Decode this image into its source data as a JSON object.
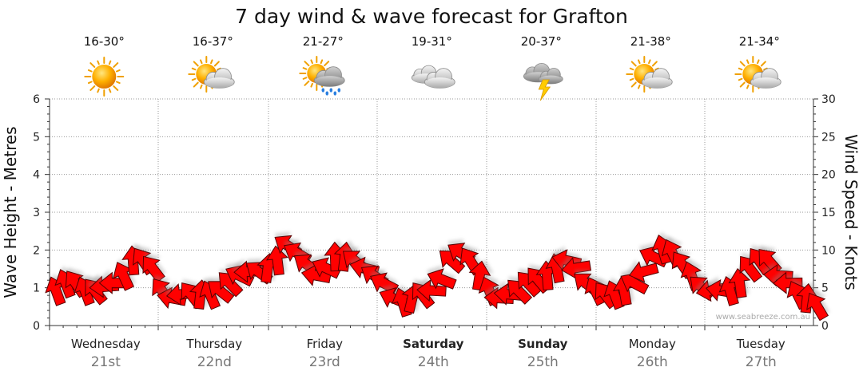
{
  "chart_data": {
    "type": "line",
    "title": "7 day wind & wave forecast for Grafton",
    "ylabel_left": "Wave Height - Metres",
    "ylabel_right": "Wind Speed - Knots",
    "ylim_left": [
      0,
      6
    ],
    "ylim_right": [
      0,
      30
    ],
    "yticks_left": [
      "0",
      "1",
      "2",
      "3",
      "4",
      "5",
      "6"
    ],
    "yticks_right": [
      "0",
      "5",
      "10",
      "15",
      "20",
      "25",
      "30"
    ],
    "grid": true,
    "days": [
      {
        "name": "Wednesday",
        "date": "21st",
        "temp": "16-30°",
        "icon": "sunny-icon",
        "bold": false
      },
      {
        "name": "Thursday",
        "date": "22nd",
        "temp": "16-37°",
        "icon": "partly-cloudy-icon",
        "bold": false
      },
      {
        "name": "Friday",
        "date": "23rd",
        "temp": "21-27°",
        "icon": "sun-cloud-rain-icon",
        "bold": false
      },
      {
        "name": "Saturday",
        "date": "24th",
        "temp": "19-31°",
        "icon": "cloudy-icon",
        "bold": true
      },
      {
        "name": "Sunday",
        "date": "25th",
        "temp": "20-37°",
        "icon": "thunderstorm-icon",
        "bold": true
      },
      {
        "name": "Monday",
        "date": "26th",
        "temp": "21-38°",
        "icon": "partly-cloudy-icon",
        "bold": false
      },
      {
        "name": "Tuesday",
        "date": "27th",
        "temp": "21-34°",
        "icon": "partly-cloudy-icon",
        "bold": false
      }
    ],
    "series": [
      {
        "name": "Wind Speed - Knots",
        "color": "#ff0000",
        "values": [
          4,
          5,
          5,
          4,
          4,
          4.5,
          5,
          6,
          8,
          8,
          7,
          4,
          3,
          3.5,
          3.5,
          3.5,
          3.5,
          4,
          5,
          6,
          6.5,
          6.5,
          7,
          8,
          10,
          9,
          7.5,
          6,
          7,
          8.5,
          8.5,
          8,
          7,
          6,
          5,
          3,
          2.5,
          3,
          3.5,
          4,
          5.5,
          8,
          9,
          8,
          6,
          4,
          3,
          3.5,
          4,
          5,
          5.5,
          6,
          7,
          8,
          7,
          5,
          4,
          3.5,
          3.5,
          4,
          5,
          6.5,
          8.5,
          9.5,
          9,
          7.5,
          6,
          4.5,
          4,
          4,
          4,
          5,
          7,
          8,
          8,
          6,
          5,
          3.5,
          3,
          2
        ]
      }
    ],
    "wind_direction": "mostly from the south to south-east (arrows point in direction of travel)"
  },
  "watermark": "www.seabreeze.com.au"
}
